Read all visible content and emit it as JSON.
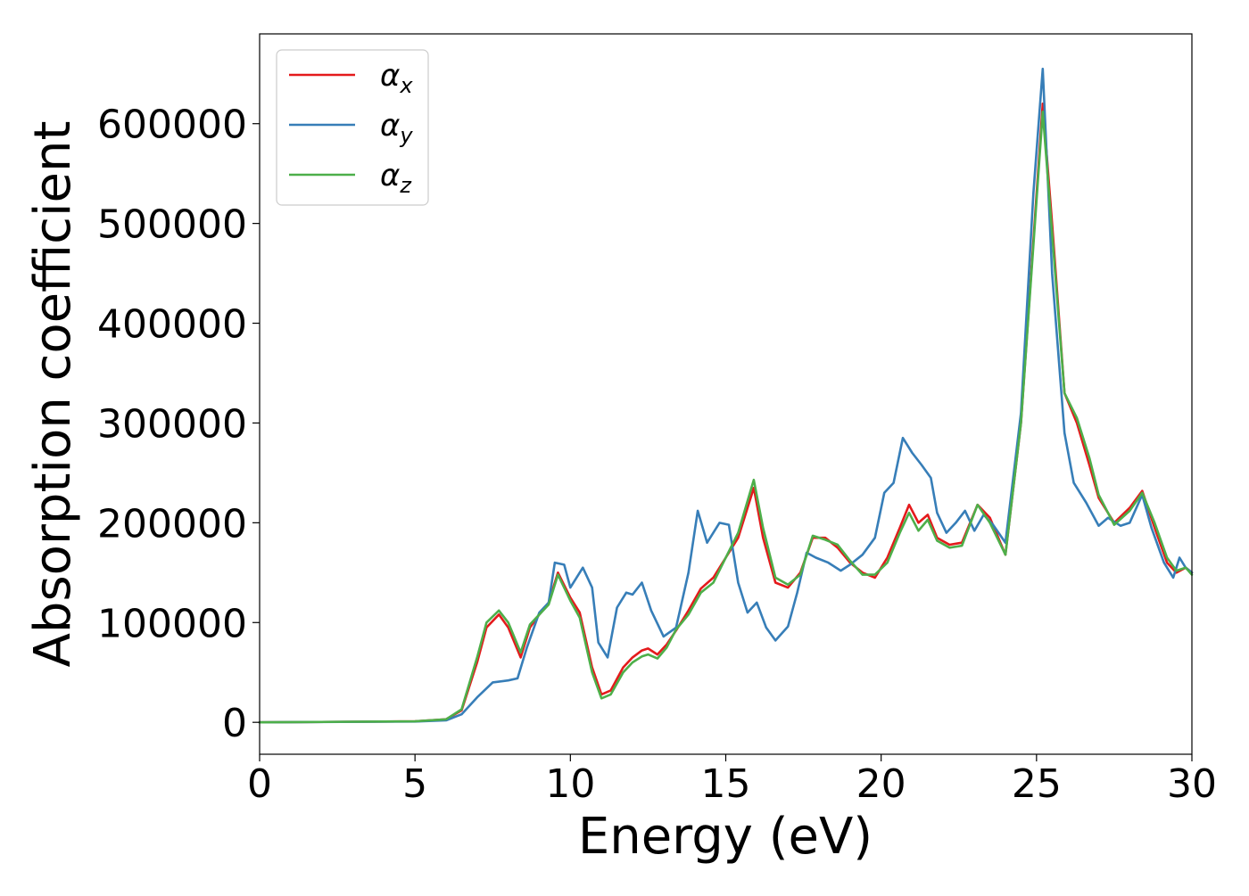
{
  "chart_data": {
    "type": "line",
    "title": "",
    "xlabel": "Energy (eV)",
    "ylabel": "Absorption coefficient",
    "xlim": [
      0,
      30
    ],
    "ylim": [
      -32000,
      690000
    ],
    "xticks": [
      0,
      5,
      10,
      15,
      20,
      25,
      30
    ],
    "xtick_labels": [
      "0",
      "5",
      "10",
      "15",
      "20",
      "25",
      "30"
    ],
    "yticks": [
      0,
      100000,
      200000,
      300000,
      400000,
      500000,
      600000
    ],
    "ytick_labels": [
      "0",
      "100000",
      "200000",
      "300000",
      "400000",
      "500000",
      "600000"
    ],
    "grid": false,
    "legend_position": "top-left",
    "series": [
      {
        "name": "αx",
        "symbol": "α",
        "subscript": "x",
        "color": "#e41a1c",
        "x": [
          0,
          5,
          6,
          6.5,
          7,
          7.3,
          7.7,
          8,
          8.4,
          8.7,
          9,
          9.3,
          9.6,
          10,
          10.3,
          10.7,
          11,
          11.3,
          11.7,
          12,
          12.3,
          12.5,
          12.8,
          13.1,
          13.4,
          13.8,
          14.2,
          14.6,
          15,
          15.4,
          15.9,
          16.2,
          16.6,
          17,
          17.4,
          17.8,
          18.2,
          18.6,
          19,
          19.4,
          19.8,
          20.2,
          20.6,
          20.9,
          21.2,
          21.5,
          21.8,
          22.2,
          22.6,
          23.1,
          23.5,
          24,
          24.5,
          25.2,
          25.5,
          25.9,
          26.3,
          26.7,
          27,
          27.5,
          28,
          28.4,
          28.8,
          29.2,
          29.5,
          29.8,
          30
        ],
        "values": [
          0,
          1000,
          3000,
          12000,
          60000,
          95000,
          108000,
          95000,
          65000,
          95000,
          108000,
          120000,
          150000,
          125000,
          110000,
          55000,
          28000,
          32000,
          55000,
          65000,
          72000,
          74000,
          68000,
          78000,
          92000,
          112000,
          134000,
          145000,
          165000,
          185000,
          235000,
          185000,
          140000,
          135000,
          150000,
          185000,
          185000,
          175000,
          160000,
          150000,
          145000,
          165000,
          195000,
          218000,
          200000,
          208000,
          185000,
          178000,
          180000,
          218000,
          205000,
          168000,
          300000,
          620000,
          500000,
          330000,
          300000,
          258000,
          225000,
          200000,
          215000,
          232000,
          195000,
          160000,
          150000,
          155000,
          150000
        ]
      },
      {
        "name": "αy",
        "symbol": "α",
        "subscript": "y",
        "color": "#377eb8",
        "x": [
          0,
          5,
          6,
          6.5,
          7,
          7.5,
          8,
          8.3,
          8.6,
          9,
          9.3,
          9.5,
          9.8,
          10,
          10.4,
          10.7,
          10.9,
          11.2,
          11.5,
          11.8,
          12,
          12.3,
          12.6,
          13,
          13.4,
          13.8,
          14.1,
          14.4,
          14.8,
          15.1,
          15.4,
          15.7,
          16,
          16.3,
          16.6,
          17,
          17.3,
          17.6,
          17.9,
          18.3,
          18.7,
          19,
          19.4,
          19.8,
          20.1,
          20.4,
          20.7,
          21,
          21.3,
          21.6,
          21.8,
          22.1,
          22.4,
          22.7,
          23,
          23.3,
          23.6,
          24,
          24.5,
          24.9,
          25.2,
          25.5,
          25.9,
          26.2,
          26.6,
          27,
          27.3,
          27.7,
          28,
          28.4,
          28.7,
          29.1,
          29.4,
          29.6,
          29.8,
          30
        ],
        "values": [
          0,
          800,
          2000,
          8000,
          25000,
          40000,
          42000,
          44000,
          75000,
          110000,
          120000,
          160000,
          158000,
          135000,
          155000,
          135000,
          80000,
          65000,
          115000,
          130000,
          128000,
          140000,
          112000,
          86000,
          95000,
          150000,
          212000,
          180000,
          200000,
          198000,
          140000,
          110000,
          120000,
          95000,
          82000,
          96000,
          130000,
          170000,
          165000,
          160000,
          152000,
          158000,
          168000,
          185000,
          230000,
          240000,
          285000,
          270000,
          258000,
          245000,
          210000,
          190000,
          200000,
          212000,
          192000,
          208000,
          198000,
          180000,
          310000,
          530000,
          655000,
          450000,
          290000,
          240000,
          220000,
          197000,
          205000,
          197000,
          200000,
          228000,
          195000,
          160000,
          145000,
          165000,
          155000,
          150000
        ]
      },
      {
        "name": "αz",
        "symbol": "α",
        "subscript": "z",
        "color": "#4daf4a",
        "x": [
          0,
          5,
          6,
          6.5,
          7,
          7.3,
          7.7,
          8,
          8.4,
          8.7,
          9,
          9.3,
          9.6,
          10,
          10.3,
          10.7,
          11,
          11.3,
          11.7,
          12,
          12.3,
          12.5,
          12.8,
          13.1,
          13.4,
          13.8,
          14.2,
          14.6,
          15,
          15.4,
          15.9,
          16.2,
          16.6,
          17,
          17.4,
          17.8,
          18.2,
          18.6,
          19,
          19.4,
          19.8,
          20.2,
          20.6,
          20.9,
          21.2,
          21.5,
          21.8,
          22.2,
          22.6,
          23.1,
          23.5,
          24,
          24.5,
          25.2,
          25.5,
          25.9,
          26.3,
          26.7,
          27,
          27.5,
          28,
          28.4,
          28.8,
          29.2,
          29.5,
          29.8,
          30
        ],
        "values": [
          0,
          1000,
          3000,
          13000,
          65000,
          100000,
          112000,
          100000,
          70000,
          98000,
          108000,
          118000,
          148000,
          122000,
          105000,
          50000,
          24000,
          28000,
          50000,
          60000,
          66000,
          68000,
          64000,
          75000,
          93000,
          108000,
          130000,
          140000,
          165000,
          190000,
          243000,
          195000,
          145000,
          138000,
          148000,
          187000,
          183000,
          178000,
          162000,
          148000,
          148000,
          160000,
          190000,
          210000,
          192000,
          203000,
          182000,
          175000,
          177000,
          218000,
          200000,
          168000,
          300000,
          612000,
          490000,
          330000,
          305000,
          265000,
          228000,
          198000,
          212000,
          230000,
          200000,
          165000,
          152000,
          155000,
          148000
        ]
      }
    ]
  }
}
